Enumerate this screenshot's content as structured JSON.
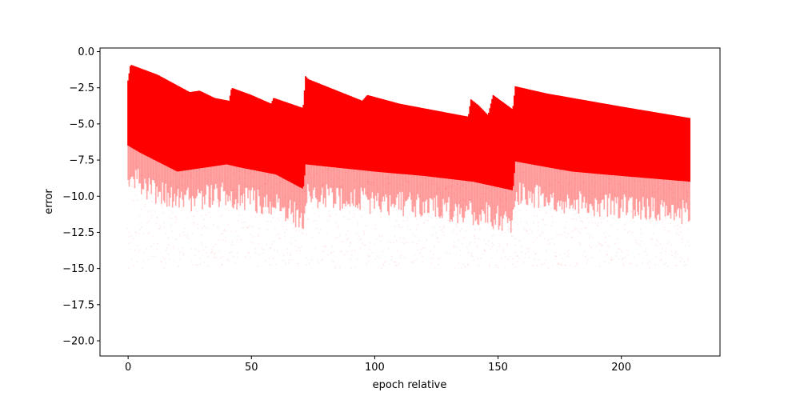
{
  "chart_data": {
    "type": "scatter",
    "title": "",
    "xlabel": "epoch relative",
    "ylabel": "error",
    "xlim": [
      -11.4,
      240.0
    ],
    "ylim": [
      -21.05,
      0.25
    ],
    "x_ticks": [
      0,
      50,
      100,
      150,
      200
    ],
    "x_tick_labels": [
      "0",
      "50",
      "100",
      "150",
      "200"
    ],
    "y_ticks": [
      0.0,
      -2.5,
      -5.0,
      -7.5,
      -10.0,
      -12.5,
      -15.0,
      -17.5,
      -20.0
    ],
    "y_tick_labels": [
      "0.0",
      "−2.5",
      "−5.0",
      "−7.5",
      "−10.0",
      "−12.5",
      "−15.0",
      "−17.5",
      "−20.0"
    ],
    "grid": false,
    "legend": "none",
    "color": "#ff0000",
    "series": [
      {
        "x_range": [
          0,
          228
        ],
        "upper_envelope": {
          "x": [
            0,
            1,
            12,
            25,
            29,
            35,
            41,
            42,
            50,
            58,
            59,
            71,
            72,
            73,
            95,
            97,
            110,
            138,
            139,
            142,
            146,
            148,
            152,
            156,
            157,
            170,
            200,
            228
          ],
          "y": [
            -2.0,
            -0.9,
            -1.6,
            -2.8,
            -2.7,
            -3.2,
            -3.4,
            -2.5,
            -3.0,
            -3.6,
            -3.2,
            -3.9,
            -1.7,
            -1.9,
            -3.4,
            -3.0,
            -3.6,
            -4.5,
            -3.3,
            -3.7,
            -4.4,
            -3.0,
            -3.5,
            -4.0,
            -2.4,
            -2.9,
            -3.8,
            -4.6
          ]
        },
        "dense_lower_envelope": {
          "x": [
            0,
            5,
            20,
            40,
            45,
            60,
            71,
            72,
            100,
            120,
            140,
            156,
            157,
            180,
            200,
            228
          ],
          "y": [
            -6.5,
            -7.0,
            -8.3,
            -7.8,
            -8.0,
            -8.5,
            -9.5,
            -7.8,
            -8.3,
            -8.6,
            -9.0,
            -9.6,
            -7.6,
            -8.3,
            -8.6,
            -9.0
          ]
        },
        "sparse_min": -15.0
      }
    ]
  }
}
